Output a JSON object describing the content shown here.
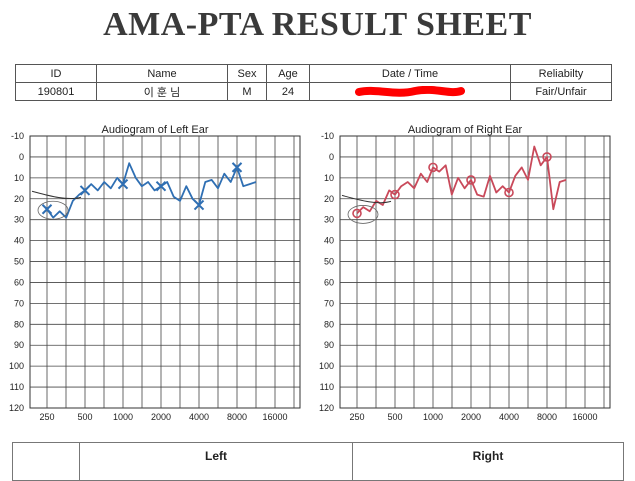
{
  "header": {
    "title": "AMA-PTA RESULT SHEET"
  },
  "info": {
    "labels": {
      "id": "ID",
      "name": "Name",
      "sex": "Sex",
      "age": "Age",
      "datetime": "Date / Time",
      "reliability": "Reliabilty"
    },
    "values": {
      "id": "190801",
      "name": "이 훈 님",
      "sex": "M",
      "age": "24",
      "datetime": "",
      "reliability": "Fair/Unfair"
    }
  },
  "colors": {
    "left_ear": "#2f6fb3",
    "right_ear": "#c9495a",
    "redaction": "#ff0000"
  },
  "chart_data": [
    {
      "type": "line",
      "title": "Audiogram of Left Ear",
      "x_tick_labels": [
        "250",
        "500",
        "1000",
        "2000",
        "4000",
        "8000",
        "16000"
      ],
      "y_tick_labels": [
        "-10",
        "0",
        "10",
        "20",
        "30",
        "40",
        "50",
        "60",
        "70",
        "80",
        "90",
        "100",
        "110",
        "120"
      ],
      "ylim": [
        -10,
        120
      ],
      "y_inverted": true,
      "x_scale": "log",
      "grid": true,
      "marker": "x",
      "series": [
        {
          "x": [
            250,
            280,
            315,
            355,
            400,
            450,
            500,
            560,
            630,
            710,
            800,
            900,
            1000,
            1120,
            1260,
            1410,
            1580,
            1780,
            2000,
            2240,
            2520,
            2830,
            3170,
            3560,
            4000,
            4490,
            5040,
            5660,
            6350,
            7130,
            8000,
            8980,
            10080,
            11310
          ],
          "y": [
            25,
            29,
            26,
            29,
            21,
            18,
            16,
            13,
            16,
            12,
            15,
            10,
            13,
            3,
            10,
            14,
            12,
            16,
            14,
            12,
            19,
            21,
            14,
            20,
            23,
            12,
            11,
            15,
            8,
            12,
            5,
            14,
            13,
            12
          ]
        }
      ],
      "markers": [
        {
          "x": 250,
          "y": 25
        },
        {
          "x": 500,
          "y": 16
        },
        {
          "x": 1000,
          "y": 13
        },
        {
          "x": 2000,
          "y": 14
        },
        {
          "x": 4000,
          "y": 23
        },
        {
          "x": 8000,
          "y": 5
        }
      ]
    },
    {
      "type": "line",
      "title": "Audiogram of Right Ear",
      "x_tick_labels": [
        "250",
        "500",
        "1000",
        "2000",
        "4000",
        "8000",
        "16000"
      ],
      "y_tick_labels": [
        "-10",
        "0",
        "10",
        "20",
        "30",
        "40",
        "50",
        "60",
        "70",
        "80",
        "90",
        "100",
        "110",
        "120"
      ],
      "ylim": [
        -10,
        120
      ],
      "y_inverted": true,
      "x_scale": "log",
      "grid": true,
      "marker": "o",
      "series": [
        {
          "x": [
            250,
            280,
            315,
            355,
            400,
            450,
            500,
            560,
            630,
            710,
            800,
            900,
            1000,
            1120,
            1260,
            1410,
            1580,
            1780,
            2000,
            2240,
            2520,
            2830,
            3170,
            3560,
            4000,
            4490,
            5040,
            5660,
            6350,
            7130,
            8000,
            8980,
            10080,
            11310
          ],
          "y": [
            27,
            24,
            26,
            21,
            23,
            16,
            18,
            14,
            12,
            15,
            8,
            12,
            5,
            7,
            4,
            18,
            10,
            15,
            11,
            18,
            19,
            9,
            17,
            14,
            17,
            9,
            5,
            11,
            -5,
            4,
            0,
            25,
            12,
            11
          ]
        }
      ],
      "markers": [
        {
          "x": 250,
          "y": 27
        },
        {
          "x": 500,
          "y": 18
        },
        {
          "x": 1000,
          "y": 5
        },
        {
          "x": 2000,
          "y": 11
        },
        {
          "x": 4000,
          "y": 17
        },
        {
          "x": 8000,
          "y": 0
        }
      ]
    }
  ],
  "bottom": {
    "left_label": "Left",
    "right_label": "Right"
  }
}
